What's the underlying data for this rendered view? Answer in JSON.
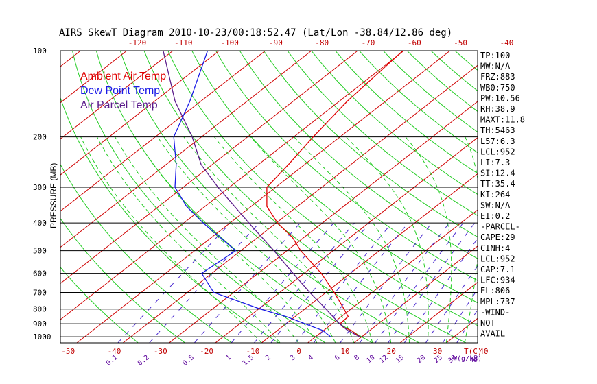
{
  "chart_data": {
    "type": "line",
    "title": "AIRS SkewT Diagram 2010-10-23/00:18:52.47 (Lat/Lon -38.84/12.86 deg)",
    "ylabel": "PRESSURE (MB)",
    "xlabel": "T(C)",
    "mixing_ratio_unit": "W(g/kg)",
    "y_scale": "log",
    "ylim": [
      1050,
      100
    ],
    "y_ticks": [
      100,
      200,
      300,
      400,
      500,
      600,
      700,
      800,
      900,
      1000
    ],
    "x_ticks_bottom": [
      -50,
      -40,
      -30,
      -20,
      -10,
      0,
      10,
      20,
      30,
      40
    ],
    "x_ticks_top": [
      -120,
      -110,
      -100,
      -90,
      -80,
      -70,
      -60,
      -50,
      -40
    ],
    "mixing_ratio_labels": [
      "0.1",
      "0.2",
      "0.5",
      "1",
      "1.5",
      "2",
      "3",
      "4",
      "6",
      "8",
      "10",
      "12",
      "15",
      "20",
      "25",
      "30",
      "40"
    ],
    "legend_placement": "top-left",
    "series": [
      {
        "name": "Ambient Air Temp",
        "color": "#e00000",
        "points": [
          [
            1000,
            9.6
          ],
          [
            950,
            6.0
          ],
          [
            925,
            3.3
          ],
          [
            900,
            1.7
          ],
          [
            850,
            1.5
          ],
          [
            800,
            -1.5
          ],
          [
            700,
            -8.2
          ],
          [
            600,
            -16.3
          ],
          [
            500,
            -27.0
          ],
          [
            450,
            -32.4
          ],
          [
            400,
            -39.7
          ],
          [
            350,
            -46.6
          ],
          [
            300,
            -51.9
          ],
          [
            250,
            -53.5
          ],
          [
            200,
            -55.8
          ],
          [
            150,
            -58.3
          ],
          [
            100,
            -60.2
          ]
        ]
      },
      {
        "name": "Dew Point Temp",
        "color": "#1a1ae6",
        "points": [
          [
            1000,
            3.3
          ],
          [
            950,
            -0.2
          ],
          [
            900,
            -5.9
          ],
          [
            850,
            -11.9
          ],
          [
            800,
            -19.6
          ],
          [
            700,
            -34.3
          ],
          [
            600,
            -42.2
          ],
          [
            500,
            -41.1
          ],
          [
            400,
            -55.8
          ],
          [
            350,
            -64.0
          ],
          [
            300,
            -71.8
          ],
          [
            250,
            -77.8
          ],
          [
            200,
            -86.0
          ],
          [
            150,
            -92.4
          ],
          [
            100,
            -102.5
          ]
        ]
      },
      {
        "name": "Air Parcel Temp",
        "color": "#5a1a8a",
        "points": [
          [
            1000,
            9.6
          ],
          [
            950,
            5.2
          ],
          [
            900,
            1.6
          ],
          [
            850,
            -1.8
          ],
          [
            800,
            -5.4
          ],
          [
            700,
            -13.5
          ],
          [
            600,
            -22.4
          ],
          [
            500,
            -32.8
          ],
          [
            400,
            -45.9
          ],
          [
            300,
            -62.5
          ],
          [
            250,
            -72.4
          ],
          [
            200,
            -82.0
          ],
          [
            150,
            -95.6
          ],
          [
            100,
            -112.1
          ]
        ]
      }
    ],
    "indices": [
      "TP:100",
      "MW:N/A",
      "FRZ:883",
      "WB0:750",
      "PW:10.56",
      "RH:38.9",
      "MAXT:11.8",
      "TH:5463",
      "L57:6.3",
      "LCL:952",
      "LI:7.3",
      "SI:12.4",
      "TT:35.4",
      "KI:264",
      "SW:N/A",
      "EI:0.2",
      "-PARCEL-",
      "CAPE:29",
      "CINH:4",
      "LCL:952",
      "CAP:7.1",
      "LFC:934",
      "EL:806",
      "MPL:737",
      "-WIND-",
      "NOT",
      "AVAIL"
    ],
    "grid": true
  }
}
